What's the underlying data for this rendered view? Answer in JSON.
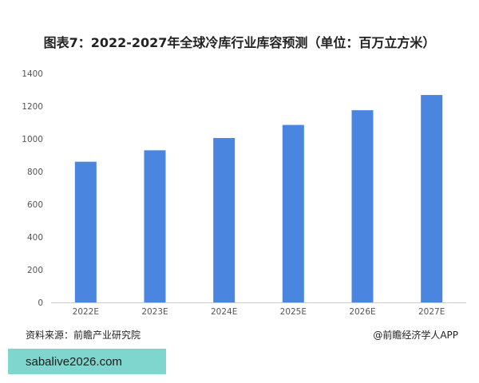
{
  "title": "图表7：2022-2027年全球冷库行业库容预测（单位：百万立方米）",
  "footer": {
    "source": "资料来源：前瞻产业研究院",
    "brand": "@前瞻经济学人APP"
  },
  "overlay_text": "sabalive2026.com",
  "colors": {
    "bar": "#4a86e0",
    "grid": "#e6e6e6",
    "axis": "#cccccc",
    "overlay": "#7fd6cf"
  },
  "chart_data": {
    "type": "bar",
    "title": "图表7：2022-2027年全球冷库行业库容预测（单位：百万立方米）",
    "categories": [
      "2022E",
      "2023E",
      "2024E",
      "2025E",
      "2026E",
      "2027E"
    ],
    "values": [
      860,
      930,
      1005,
      1085,
      1175,
      1268
    ],
    "xlabel": "",
    "ylabel": "",
    "ylim": [
      0,
      1400
    ],
    "yticks": [
      0,
      200,
      400,
      600,
      800,
      1000,
      1200,
      1400
    ],
    "grid": false,
    "legend": "none"
  }
}
